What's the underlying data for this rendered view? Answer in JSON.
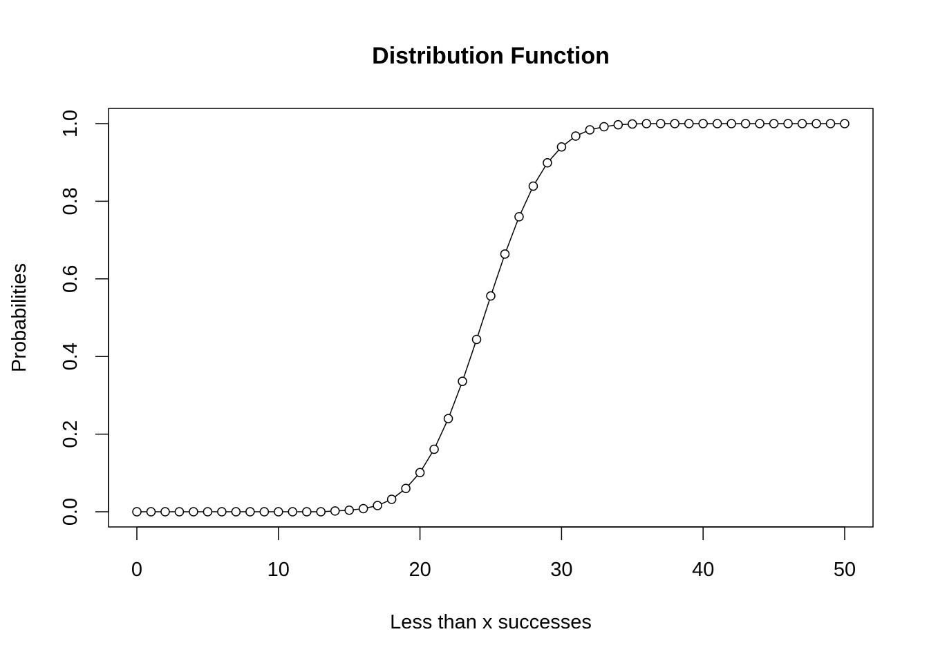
{
  "chart_data": {
    "type": "line",
    "title": "Distribution Function",
    "xlabel": "Less than x successes",
    "ylabel": "Probabilities",
    "xlim": [
      0,
      50
    ],
    "ylim": [
      0,
      1
    ],
    "x_ticks": [
      "0",
      "10",
      "20",
      "30",
      "40",
      "50"
    ],
    "y_ticks": [
      "0.0",
      "0.2",
      "0.4",
      "0.6",
      "0.8",
      "1.0"
    ],
    "markers": "open-circle",
    "line": true,
    "grid": false,
    "legend": "none",
    "x": [
      0,
      1,
      2,
      3,
      4,
      5,
      6,
      7,
      8,
      9,
      10,
      11,
      12,
      13,
      14,
      15,
      16,
      17,
      18,
      19,
      20,
      21,
      22,
      23,
      24,
      25,
      26,
      27,
      28,
      29,
      30,
      31,
      32,
      33,
      34,
      35,
      36,
      37,
      38,
      39,
      40,
      41,
      42,
      43,
      44,
      45,
      46,
      47,
      48,
      49,
      50
    ],
    "y": [
      0,
      0,
      0,
      0,
      0,
      0,
      0,
      0,
      0,
      0,
      0,
      0,
      0,
      0,
      0.002,
      0.004,
      0.008,
      0.016,
      0.032,
      0.06,
      0.101,
      0.161,
      0.24,
      0.336,
      0.444,
      0.556,
      0.664,
      0.76,
      0.839,
      0.899,
      0.94,
      0.968,
      0.984,
      0.992,
      0.997,
      0.999,
      1,
      1,
      1,
      1,
      1,
      1,
      1,
      1,
      1,
      1,
      1,
      1,
      1,
      1,
      1
    ]
  }
}
